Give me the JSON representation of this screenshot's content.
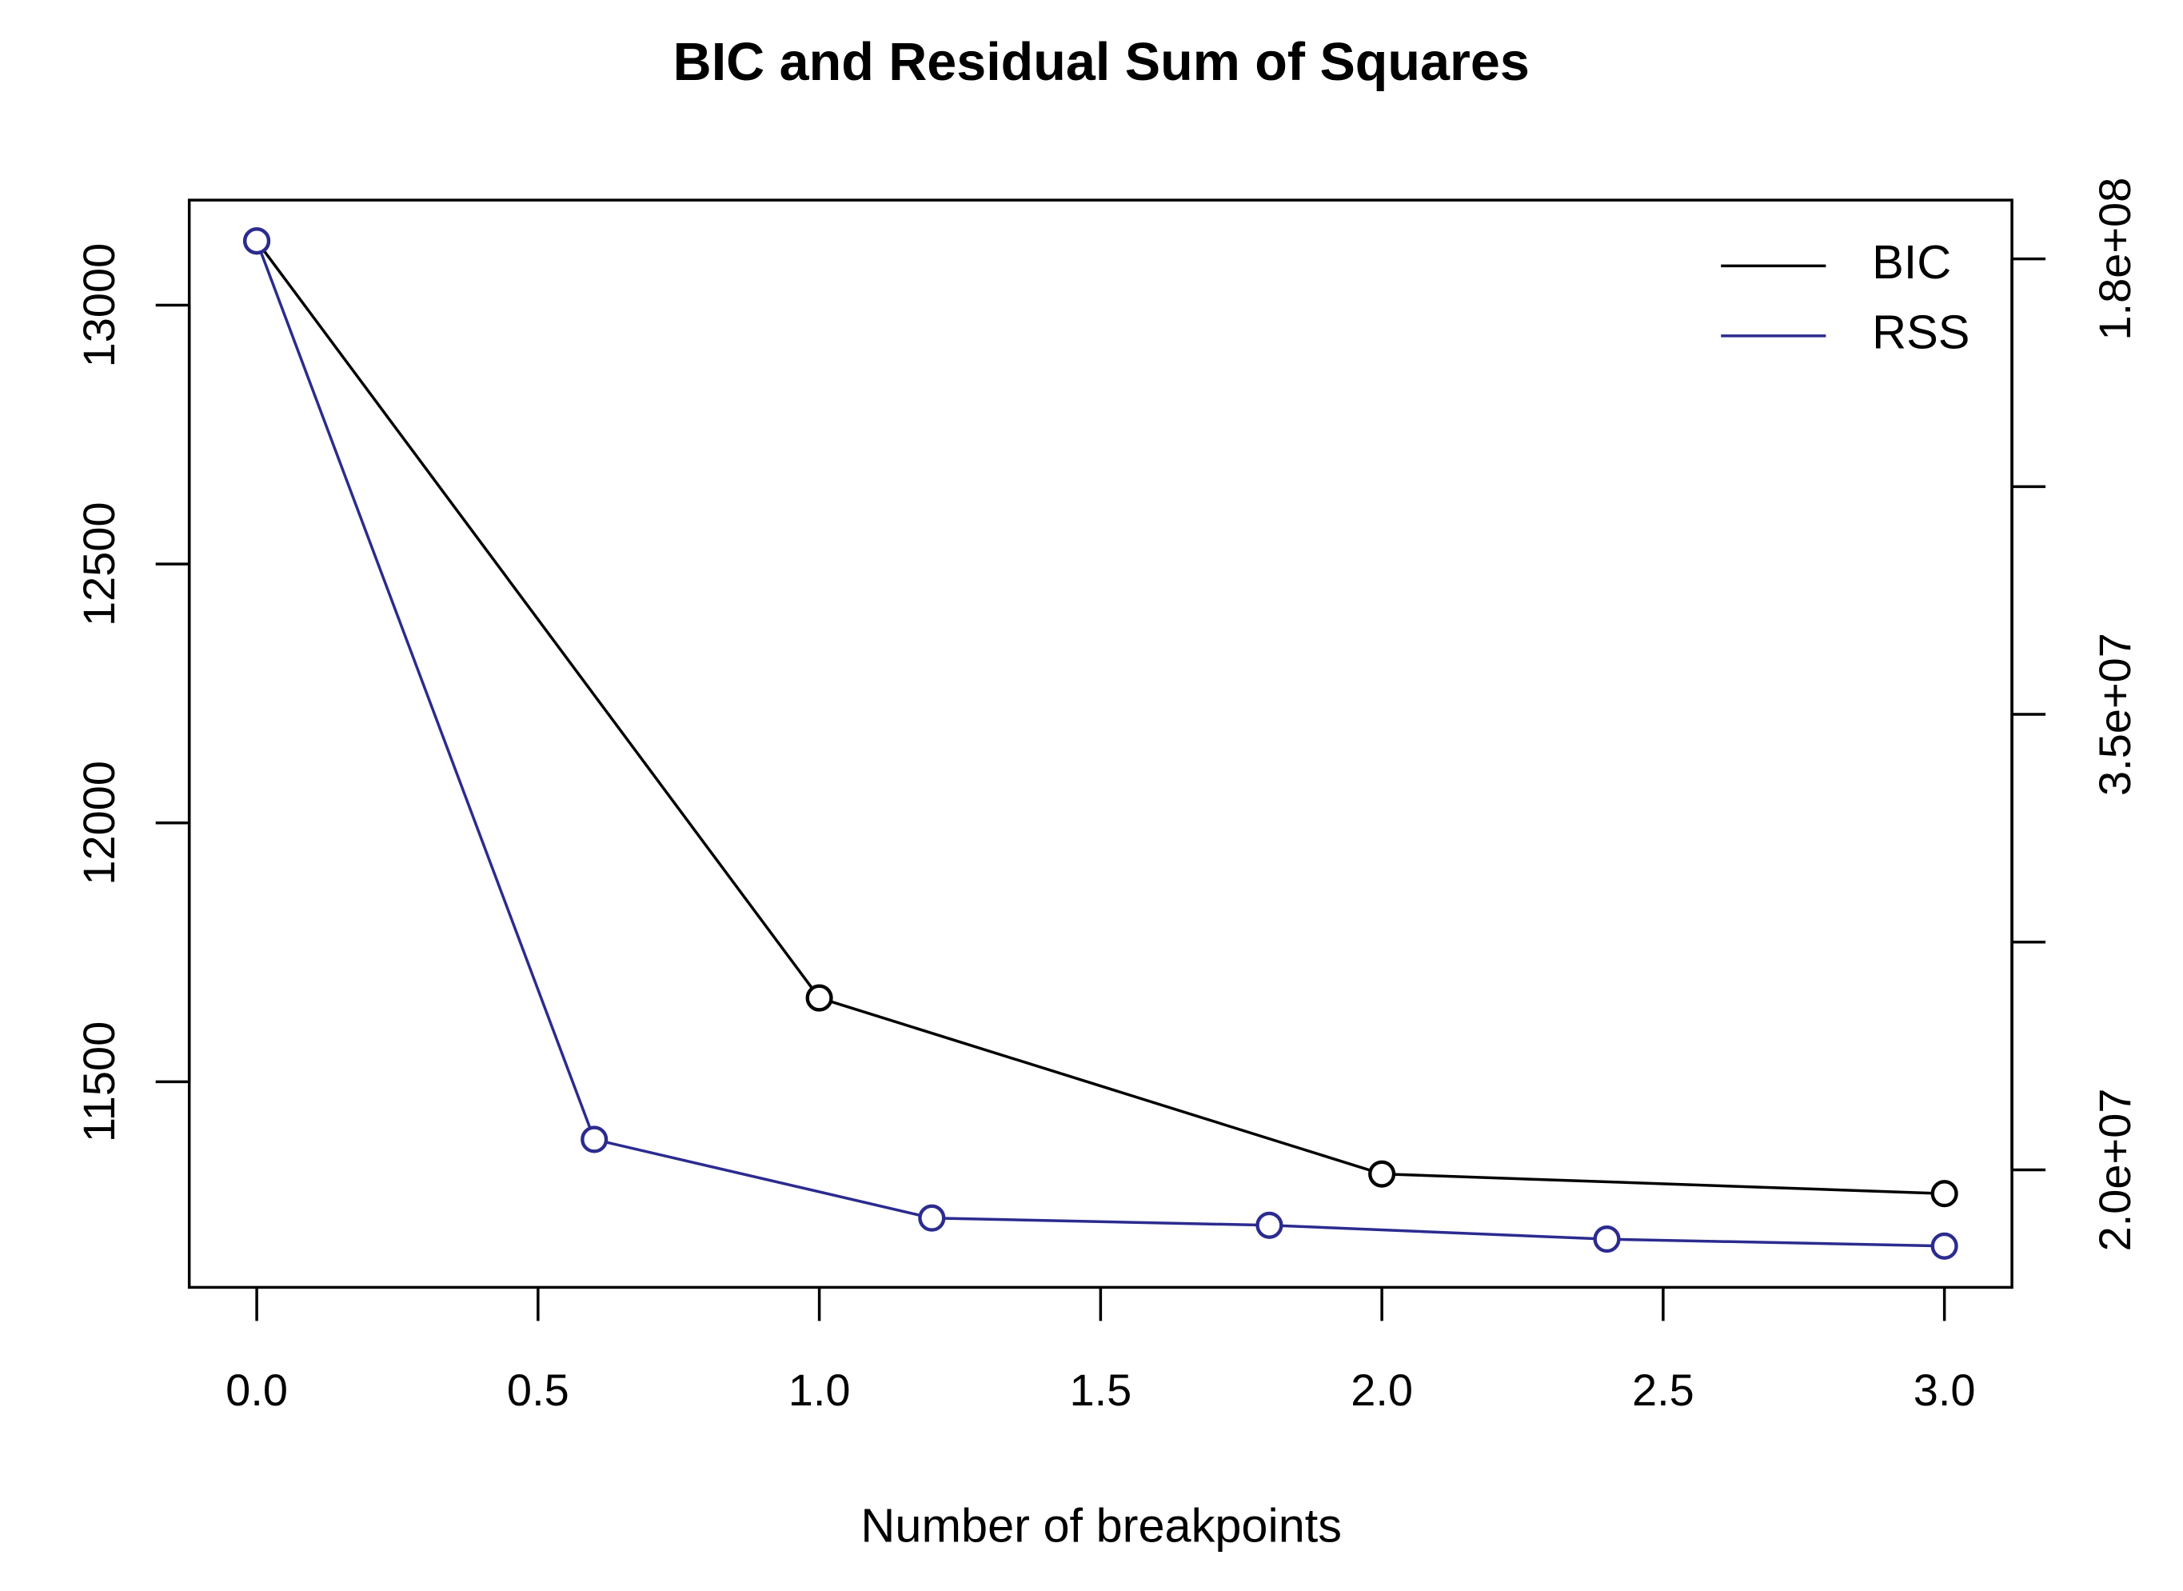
{
  "chart_data": {
    "type": "line",
    "title": "BIC and Residual Sum of Squares",
    "x_label": "Number of breakpoints",
    "xlim": [
      -0.12,
      3.12
    ],
    "xticks": [
      {
        "value": 0,
        "label": "0.0"
      },
      {
        "value": 0.5,
        "label": "0.5"
      },
      {
        "value": 1,
        "label": "1.0"
      },
      {
        "value": 1.5,
        "label": "1.5"
      },
      {
        "value": 2,
        "label": "2.0"
      },
      {
        "value": 2.5,
        "label": "2.5"
      },
      {
        "value": 3,
        "label": "3.0"
      }
    ],
    "ylim": [
      11103,
      13203
    ],
    "yticks": [
      11500,
      12000,
      12500,
      13000
    ],
    "y2lim": [
      16100000,
      199000000
    ],
    "y2ticks": [
      {
        "value": 20000000,
        "label": "2.0e+07"
      },
      {
        "value": 27500000
      },
      {
        "value": 35000000,
        "label": "3.5e+07"
      },
      {
        "value": 107500000
      },
      {
        "value": 180000000,
        "label": "1.8e+08"
      }
    ],
    "legend": "topright",
    "series": [
      {
        "name": "BIC",
        "color": "#000000",
        "x": [
          0,
          1,
          2,
          3
        ],
        "values": [
          13124,
          11662,
          11322,
          11284
        ]
      },
      {
        "name": "RSS",
        "color": "#2b2b8f",
        "axis": "y2",
        "x": [
          0,
          0.6,
          1.2,
          1.8,
          2.4,
          3.0
        ],
        "values": [
          185800000,
          21000000,
          18400000,
          18160000,
          17700000,
          17470000
        ]
      }
    ]
  }
}
